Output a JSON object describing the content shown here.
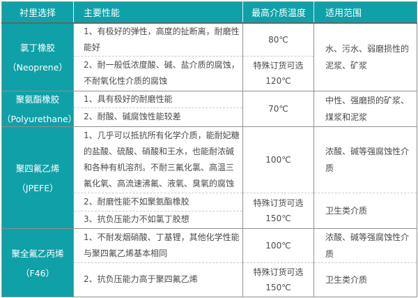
{
  "colors": {
    "teal": "#10a0a8",
    "border": "#8f8f8f",
    "dashed_border": "#c9c9c9",
    "text": "#4a4a4a",
    "header_text": "#ffffff"
  },
  "header": {
    "cols": [
      "衬里选择",
      "主要性能",
      "最高介质温度",
      "适用范围"
    ]
  },
  "groups": [
    {
      "name": "氯丁橡胶",
      "alias": "（Neoprene）",
      "perfs": [
        "1、有极好的弹性，高度的扯断离，耐磨性能好",
        "2、耐一般低浓度酸、碱、盐介质的腐蚀，不耐氧化性介质的腐蚀"
      ],
      "temp1": "80℃",
      "temp2_line1": "特殊订货可选",
      "temp2_line2": "120℃",
      "range1": "水、污水、弱磨损性的泥浆、矿浆"
    },
    {
      "name": "聚氨酯橡胶",
      "alias": "（Polyurethane）",
      "perfs": [
        "1、具有极好的耐磨性能",
        "2、耐酸、碱腐蚀性能较差"
      ],
      "temp1": "70℃",
      "range1": "中性、强磨损的矿浆、煤浆和泥浆"
    },
    {
      "name": "聚四氟乙烯",
      "alias": "（JPEFE）",
      "perfs": [
        "1、几乎可以抵抗所有化学介质，能耐妃糖的盐酸、硫酸、硝酸和王水，也能耐浓碱和各种有机溶剂。不耐三氟化氯、高温三氟化氧、高流速沸氟、液氧、臭氧的腐蚀",
        "2、耐磨性能不如聚氨酯橡胶",
        "3、抗负压能力不如氯丁胶想"
      ],
      "temp1": "100℃",
      "temp2_line1": "特殊订货可选",
      "temp2_line2": "150℃",
      "range1": "浓酸、碱等强腐蚀性介质",
      "range2": "卫生类介质"
    },
    {
      "name": "聚全氟乙丙烯",
      "alias": "（F46）",
      "perfs": [
        "1、不耐发烟硝酸、丁基锂，其他化学性能与聚四氟乙烯基本相同",
        "2、抗负压能力高于聚四氟乙烯"
      ],
      "temp1": "100℃",
      "temp2_line1": "特殊订货可选",
      "temp2_line2": "150℃",
      "range1": "浓酸、碱等强腐蚀性介质",
      "range2": "卫生类介质"
    }
  ]
}
